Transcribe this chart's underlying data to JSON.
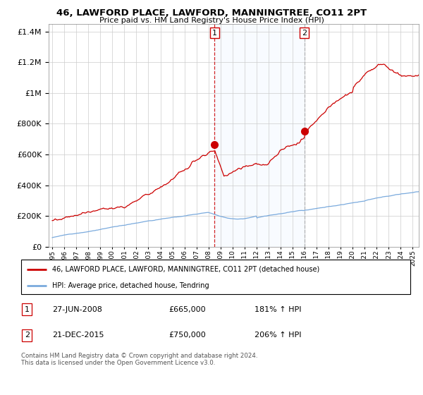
{
  "title": "46, LAWFORD PLACE, LAWFORD, MANNINGTREE, CO11 2PT",
  "subtitle": "Price paid vs. HM Land Registry's House Price Index (HPI)",
  "red_label": "46, LAWFORD PLACE, LAWFORD, MANNINGTREE, CO11 2PT (detached house)",
  "blue_label": "HPI: Average price, detached house, Tendring",
  "annotation1_label": "1",
  "annotation1_date": "27-JUN-2008",
  "annotation1_price": "£665,000",
  "annotation1_hpi": "181% ↑ HPI",
  "annotation2_label": "2",
  "annotation2_date": "21-DEC-2015",
  "annotation2_price": "£750,000",
  "annotation2_hpi": "206% ↑ HPI",
  "vline1_x": 2008.5,
  "vline2_x": 2015.97,
  "marker1_x": 2008.5,
  "marker1_y": 665000,
  "marker2_x": 2015.97,
  "marker2_y": 750000,
  "ylim": [
    0,
    1450000
  ],
  "xlim": [
    1994.7,
    2025.5
  ],
  "footer": "Contains HM Land Registry data © Crown copyright and database right 2024.\nThis data is licensed under the Open Government Licence v3.0.",
  "red_color": "#cc0000",
  "blue_color": "#7aaadd",
  "vline1_color": "#cc0000",
  "vline2_color": "#aaaaaa",
  "background_color": "#ffffff",
  "shade_color": "#ddeeff",
  "label_box_color": "#cc0000",
  "label_text_color": "#000000"
}
